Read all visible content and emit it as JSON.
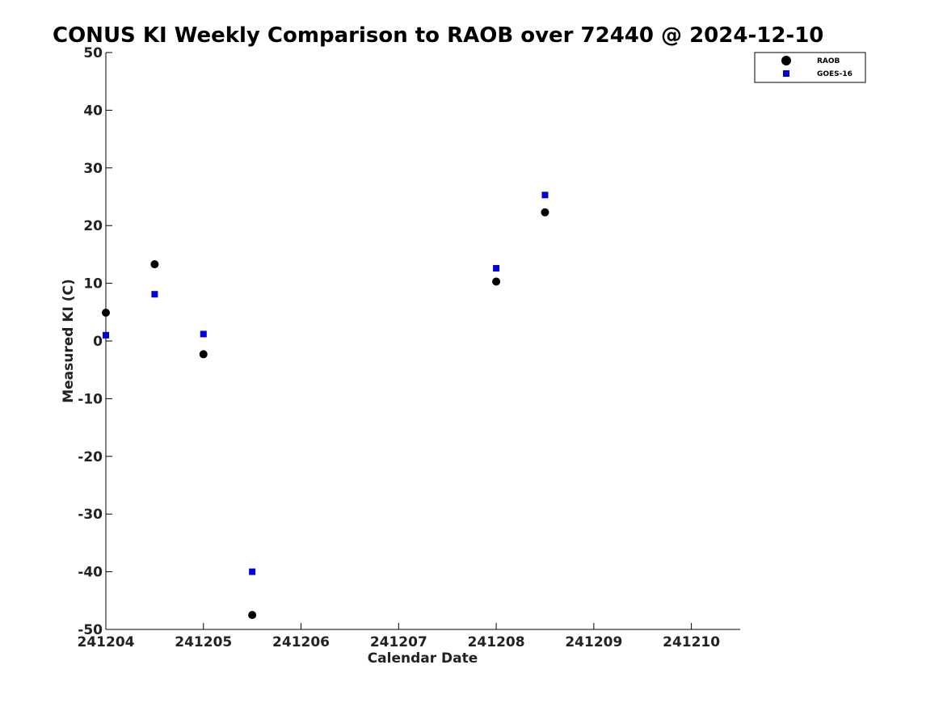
{
  "chart_data": {
    "type": "scatter",
    "title": "CONUS KI Weekly Comparison to RAOB over 72440 @ 2024-12-10",
    "xlabel": "Calendar Date",
    "ylabel": "Measured KI (C)",
    "xlim": [
      "241204",
      "241210.5"
    ],
    "ylim": [
      -50,
      50
    ],
    "x_ticks": [
      "241204",
      "241205",
      "241206",
      "241207",
      "241208",
      "241209",
      "241210"
    ],
    "y_ticks": [
      50,
      40,
      30,
      20,
      10,
      0,
      -10,
      -20,
      -30,
      -40,
      -50
    ],
    "y_tick_labels": [
      "50",
      "40",
      "30",
      "20",
      "10",
      "0",
      "-10",
      "-20",
      "-30",
      "-40",
      "-50"
    ],
    "grid": false,
    "legend_position": "top-right",
    "series": [
      {
        "name": "RAOB",
        "marker": "circle",
        "color": "#000000",
        "points": [
          {
            "x": "2024-12-04 00Z",
            "y": 4.9
          },
          {
            "x": "2024-12-04 12Z",
            "y": 13.3
          },
          {
            "x": "2024-12-05 00Z",
            "y": -2.3
          },
          {
            "x": "2024-12-05 12Z",
            "y": -47.5
          },
          {
            "x": "2024-12-08 00Z",
            "y": 10.3
          },
          {
            "x": "2024-12-08 12Z",
            "y": 22.3
          }
        ]
      },
      {
        "name": "GOES-16",
        "marker": "square",
        "color": "#0000dd",
        "points": [
          {
            "x": "2024-12-04 00Z",
            "y": 1.0
          },
          {
            "x": "2024-12-04 12Z",
            "y": 8.1
          },
          {
            "x": "2024-12-05 00Z",
            "y": 1.2
          },
          {
            "x": "2024-12-05 12Z",
            "y": -40.0
          },
          {
            "x": "2024-12-08 00Z",
            "y": 12.6
          },
          {
            "x": "2024-12-08 12Z",
            "y": 25.3
          }
        ]
      }
    ]
  }
}
